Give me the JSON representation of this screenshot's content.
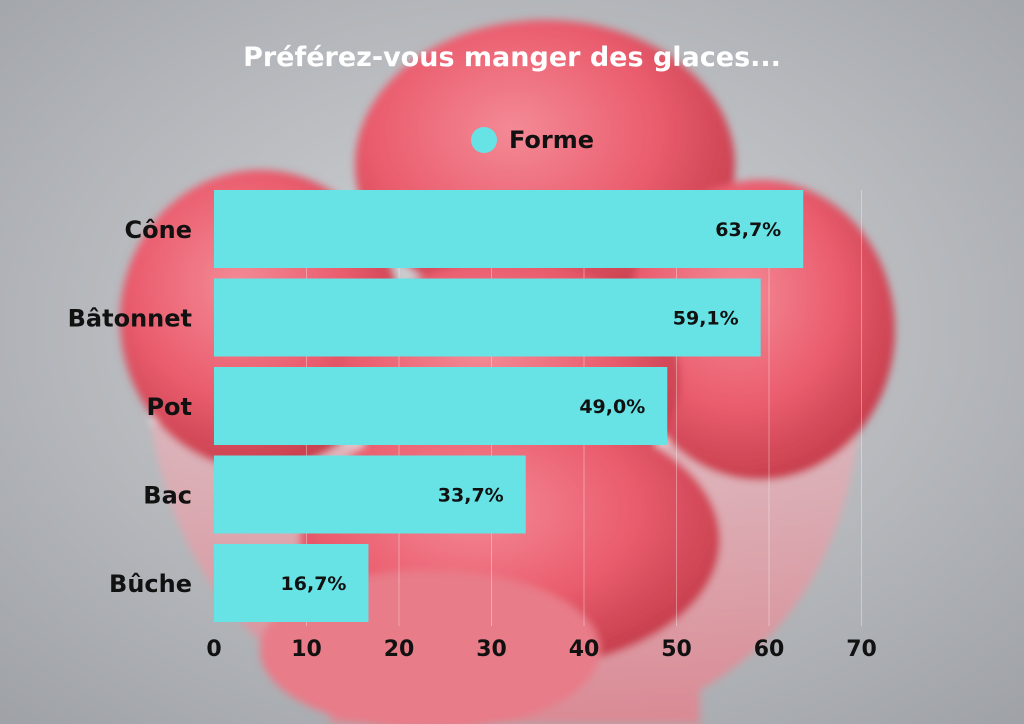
{
  "chart_data": {
    "type": "bar",
    "orientation": "horizontal",
    "title": "Préférez-vous manger des glaces...",
    "categories": [
      "Cône",
      "Bâtonnet",
      "Pot",
      "Bac",
      "Bûche"
    ],
    "series": [
      {
        "name": "Forme",
        "values": [
          63.7,
          59.1,
          49.0,
          33.7,
          16.7
        ],
        "data_labels": [
          "63,7%",
          "59,1%",
          "49,0%",
          "33,7%",
          "16,7%"
        ],
        "color": "#67e3e6"
      }
    ],
    "x_ticks": [
      "0",
      "10",
      "20",
      "30",
      "40",
      "50",
      "60",
      "70"
    ],
    "xlim": [
      0,
      70
    ],
    "grid": true,
    "legend_position": "top"
  },
  "background": {
    "description_icon": "pink-ice-cream-bowl-photo",
    "scoop_color": "#ee5f70",
    "backdrop_color": "#b9bcc1"
  }
}
